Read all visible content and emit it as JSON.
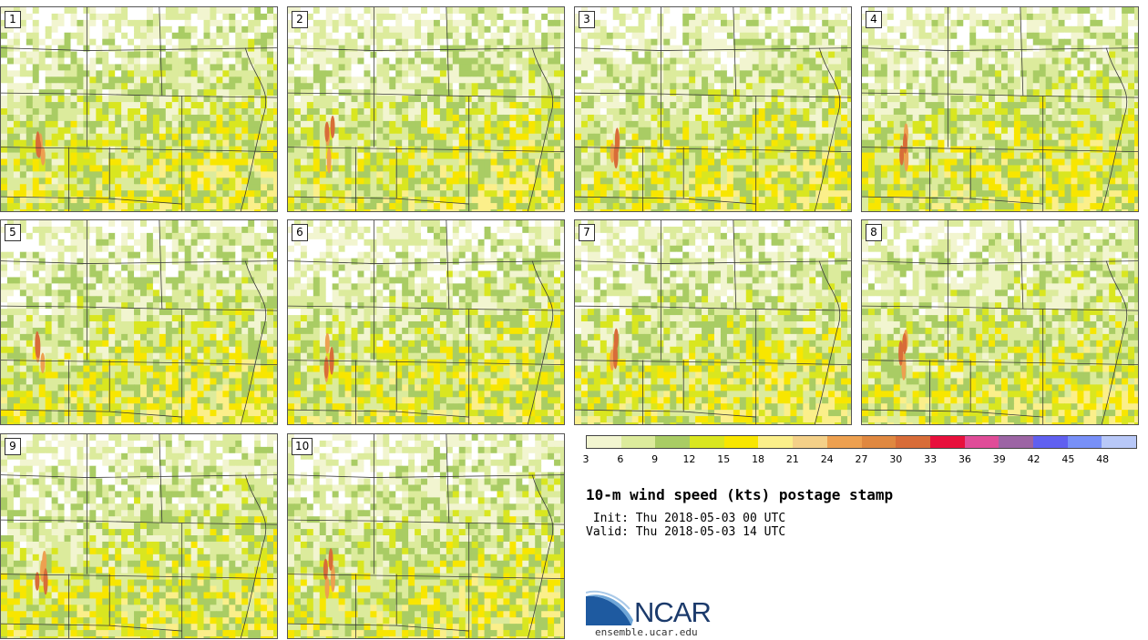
{
  "members": [
    "1",
    "2",
    "3",
    "4",
    "5",
    "6",
    "7",
    "8",
    "9",
    "10"
  ],
  "colorbar": {
    "colors": [
      "#f2f5d0",
      "#dceb9c",
      "#a9cc64",
      "#d9e620",
      "#f8e600",
      "#fbef8a",
      "#f4d088",
      "#eda050",
      "#e08840",
      "#d86c38",
      "#e8103c",
      "#e04c98",
      "#9c64a4",
      "#6060f0",
      "#7890f8",
      "#b8c8f8"
    ],
    "ticks": [
      "3",
      "6",
      "9",
      "12",
      "15",
      "18",
      "21",
      "24",
      "27",
      "30",
      "33",
      "36",
      "39",
      "42",
      "45",
      "48"
    ]
  },
  "title": "10-m wind speed (kts) postage stamp",
  "init": " Init: Thu 2018-05-03 00 UTC",
  "valid": "Valid: Thu 2018-05-03 14 UTC",
  "logo": {
    "text": "NCAR",
    "url": "ensemble.ucar.edu"
  }
}
